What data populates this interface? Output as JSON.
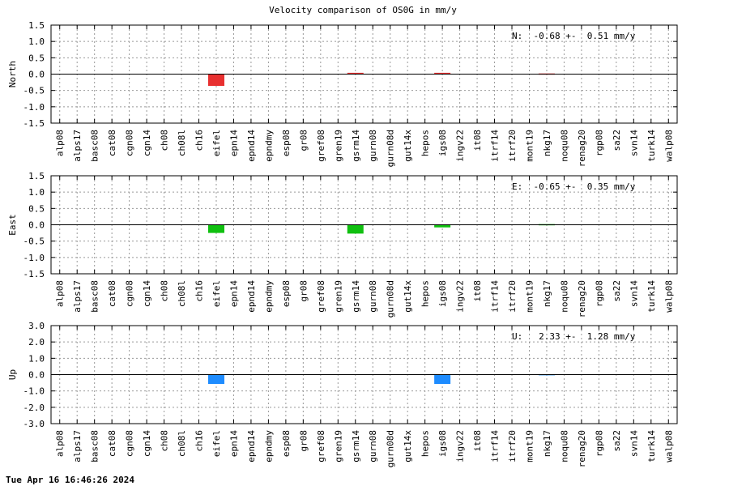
{
  "chart_data": {
    "title": "Velocity comparison of OS0G in mm/y",
    "categories": [
      "alp08",
      "alps17",
      "basc08",
      "cat08",
      "cgn08",
      "cgn14",
      "ch08",
      "ch08l",
      "ch16",
      "eifel",
      "epn14",
      "epnd14",
      "epndmy",
      "esp08",
      "gr08",
      "gref08",
      "gren19",
      "gsrm14",
      "gurn08",
      "gurn08d",
      "gut14x",
      "hepos",
      "igs08",
      "ingv22",
      "it08",
      "itrf14",
      "itrf20",
      "mont19",
      "nkg17",
      "noqu08",
      "renag20",
      "rgp08",
      "sa22",
      "svn14",
      "turk14",
      "walp08"
    ],
    "panels": [
      {
        "type": "bar",
        "ylabel": "North",
        "ylim": [
          -1.5,
          1.5
        ],
        "yticks": [
          1.5,
          1.0,
          0.5,
          0.0,
          -0.5,
          -1.0,
          -1.5
        ],
        "ytick_labels": [
          "1.5",
          "1.0",
          "0.5",
          "0.0",
          "-0.5",
          "-1.0",
          "-1.5"
        ],
        "color": "#e83030",
        "annotation": "N:  -0.68 +-  0.51 mm/y",
        "values": [
          0,
          0,
          0,
          0,
          0,
          0,
          0,
          0,
          0,
          -0.36,
          0,
          0,
          0,
          0,
          0,
          0,
          0,
          0.04,
          0,
          0,
          0,
          0,
          0.04,
          0,
          0,
          0,
          0,
          0,
          0.02,
          0,
          0,
          0,
          0,
          0,
          0,
          0
        ]
      },
      {
        "type": "bar",
        "ylabel": "East",
        "ylim": [
          -1.5,
          1.5
        ],
        "yticks": [
          1.5,
          1.0,
          0.5,
          0.0,
          -0.5,
          -1.0,
          -1.5
        ],
        "ytick_labels": [
          "1.5",
          "1.0",
          "0.5",
          "0.0",
          "-0.5",
          "-1.0",
          "-1.5"
        ],
        "color": "#10c010",
        "annotation": "E:  -0.65 +-  0.35 mm/y",
        "values": [
          0,
          0,
          0,
          0,
          0,
          0,
          0,
          0,
          0,
          -0.25,
          0,
          0,
          0,
          0,
          0,
          0,
          0,
          -0.27,
          0,
          0,
          0,
          0,
          -0.08,
          0,
          0,
          0,
          0,
          0,
          0.02,
          0,
          0,
          0,
          0,
          0,
          0,
          0
        ]
      },
      {
        "type": "bar",
        "ylabel": "Up",
        "ylim": [
          -3.0,
          3.0
        ],
        "yticks": [
          3.0,
          2.0,
          1.0,
          0.0,
          -1.0,
          -2.0,
          -3.0
        ],
        "ytick_labels": [
          "3.0",
          "2.0",
          "1.0",
          "0.0",
          "-1.0",
          "-2.0",
          "-3.0"
        ],
        "color": "#1e8cff",
        "annotation": "U:   2.33 +-  1.28 mm/y",
        "values": [
          0,
          0,
          0,
          0,
          0,
          0,
          0,
          0,
          0,
          -0.57,
          0,
          0,
          0,
          0,
          0,
          0,
          0,
          0,
          0,
          0,
          0,
          0,
          -0.57,
          0,
          0,
          0,
          0,
          0,
          0.03,
          0,
          0,
          0,
          0,
          0,
          0,
          0
        ]
      }
    ],
    "grid": true
  },
  "footer": {
    "timestamp": "Tue Apr 16 16:46:26 2024"
  }
}
